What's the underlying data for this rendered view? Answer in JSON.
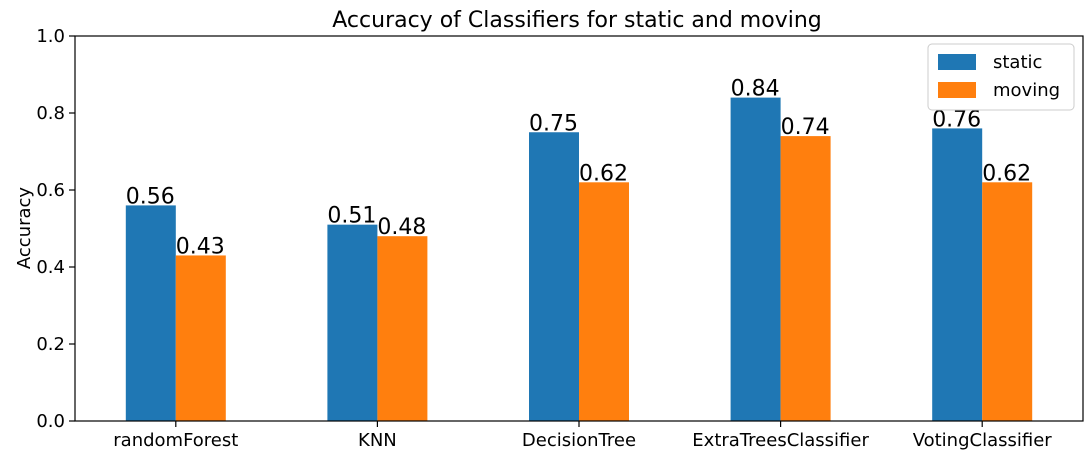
{
  "chart_data": {
    "type": "bar",
    "title": "Accuracy of Classifiers for static and moving",
    "xlabel": "",
    "ylabel": "Accuracy",
    "ylim": [
      0,
      1.0
    ],
    "yticks": [
      "0.0",
      "0.2",
      "0.4",
      "0.6",
      "0.8",
      "1.0"
    ],
    "categories": [
      "randomForest",
      "KNN",
      "DecisionTree",
      "ExtraTreesClassifier",
      "VotingClassifier"
    ],
    "series": [
      {
        "name": "static",
        "color": "#1f77b4",
        "values": [
          0.56,
          0.51,
          0.75,
          0.84,
          0.76
        ],
        "labels": [
          "0.56",
          "0.51",
          "0.75",
          "0.84",
          "0.76"
        ]
      },
      {
        "name": "moving",
        "color": "#ff7f0e",
        "values": [
          0.43,
          0.48,
          0.62,
          0.74,
          0.62
        ],
        "labels": [
          "0.43",
          "0.48",
          "0.62",
          "0.74",
          "0.62"
        ]
      }
    ],
    "grid": false,
    "legend_position": "top-right"
  }
}
